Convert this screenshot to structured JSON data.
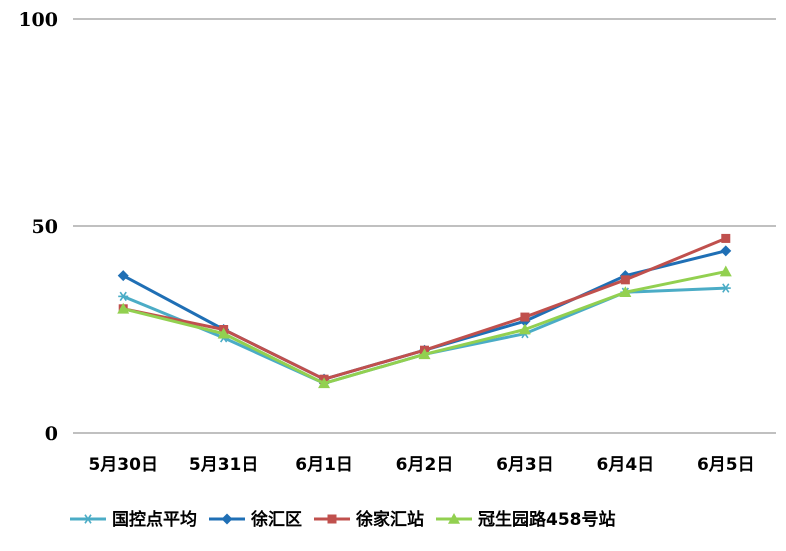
{
  "chart_data": {
    "type": "line",
    "categories": [
      "5月30日",
      "5月31日",
      "6月1日",
      "6月2日",
      "6月3日",
      "6月4日",
      "6月5日"
    ],
    "ylim": [
      0,
      100
    ],
    "yticks": [
      "0",
      "50",
      "100"
    ],
    "grid": "horizontal",
    "legend": "bottom",
    "series": [
      {
        "name": "国控点平均",
        "color": "#4BACC6",
        "marker": "asterisk",
        "values": [
          33,
          23,
          12,
          19,
          24,
          34,
          35
        ]
      },
      {
        "name": "徐汇区",
        "color": "#1F6FB5",
        "marker": "diamond",
        "values": [
          38,
          25,
          13,
          20,
          27,
          38,
          44
        ]
      },
      {
        "name": "徐家汇站",
        "color": "#C0504D",
        "marker": "square",
        "values": [
          30,
          25,
          13,
          20,
          28,
          37,
          47
        ]
      },
      {
        "name": "冠生园路458号站",
        "color": "#92D050",
        "marker": "triangle",
        "values": [
          30,
          24,
          12,
          19,
          25,
          34,
          39
        ]
      }
    ]
  }
}
